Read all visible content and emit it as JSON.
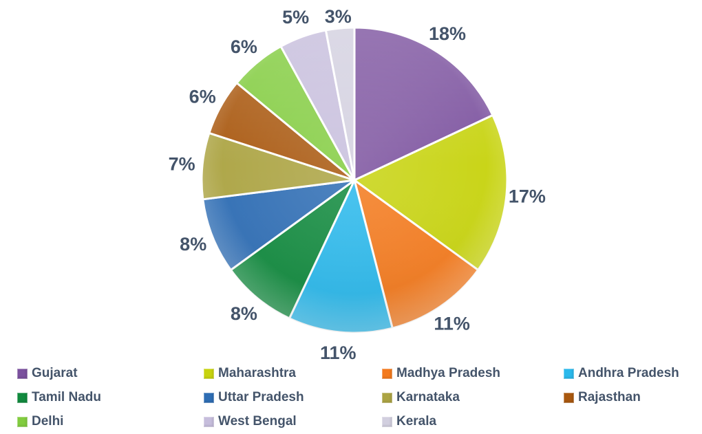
{
  "chart_data": {
    "type": "pie",
    "title": "",
    "unit": "%",
    "start_angle_deg": 0,
    "direction": "clockwise",
    "label_format": "{value}%",
    "label_color": "#44546A",
    "legend_position": "bottom",
    "background": "#FFFFFF",
    "slices": [
      {
        "label": "Gujarat",
        "value": 18,
        "color": "#7B519E"
      },
      {
        "label": "Maharashtra",
        "value": 17,
        "color": "#C7D30F"
      },
      {
        "label": "Madhya Pradesh",
        "value": 11,
        "color": "#F47A1D"
      },
      {
        "label": "Andhra Pradesh",
        "value": 11,
        "color": "#2BB9EC"
      },
      {
        "label": "Tamil Nadu",
        "value": 8,
        "color": "#118A3E"
      },
      {
        "label": "Uttar Pradesh",
        "value": 8,
        "color": "#2E6DB4"
      },
      {
        "label": "Karnataka",
        "value": 7,
        "color": "#ACA443"
      },
      {
        "label": "Rajasthan",
        "value": 6,
        "color": "#A9580F"
      },
      {
        "label": "Delhi",
        "value": 6,
        "color": "#82CC3F"
      },
      {
        "label": "West Bengal",
        "value": 5,
        "color": "#C6BDDC"
      },
      {
        "label": "Kerala",
        "value": 3,
        "color": "#D2CFDF"
      }
    ]
  }
}
